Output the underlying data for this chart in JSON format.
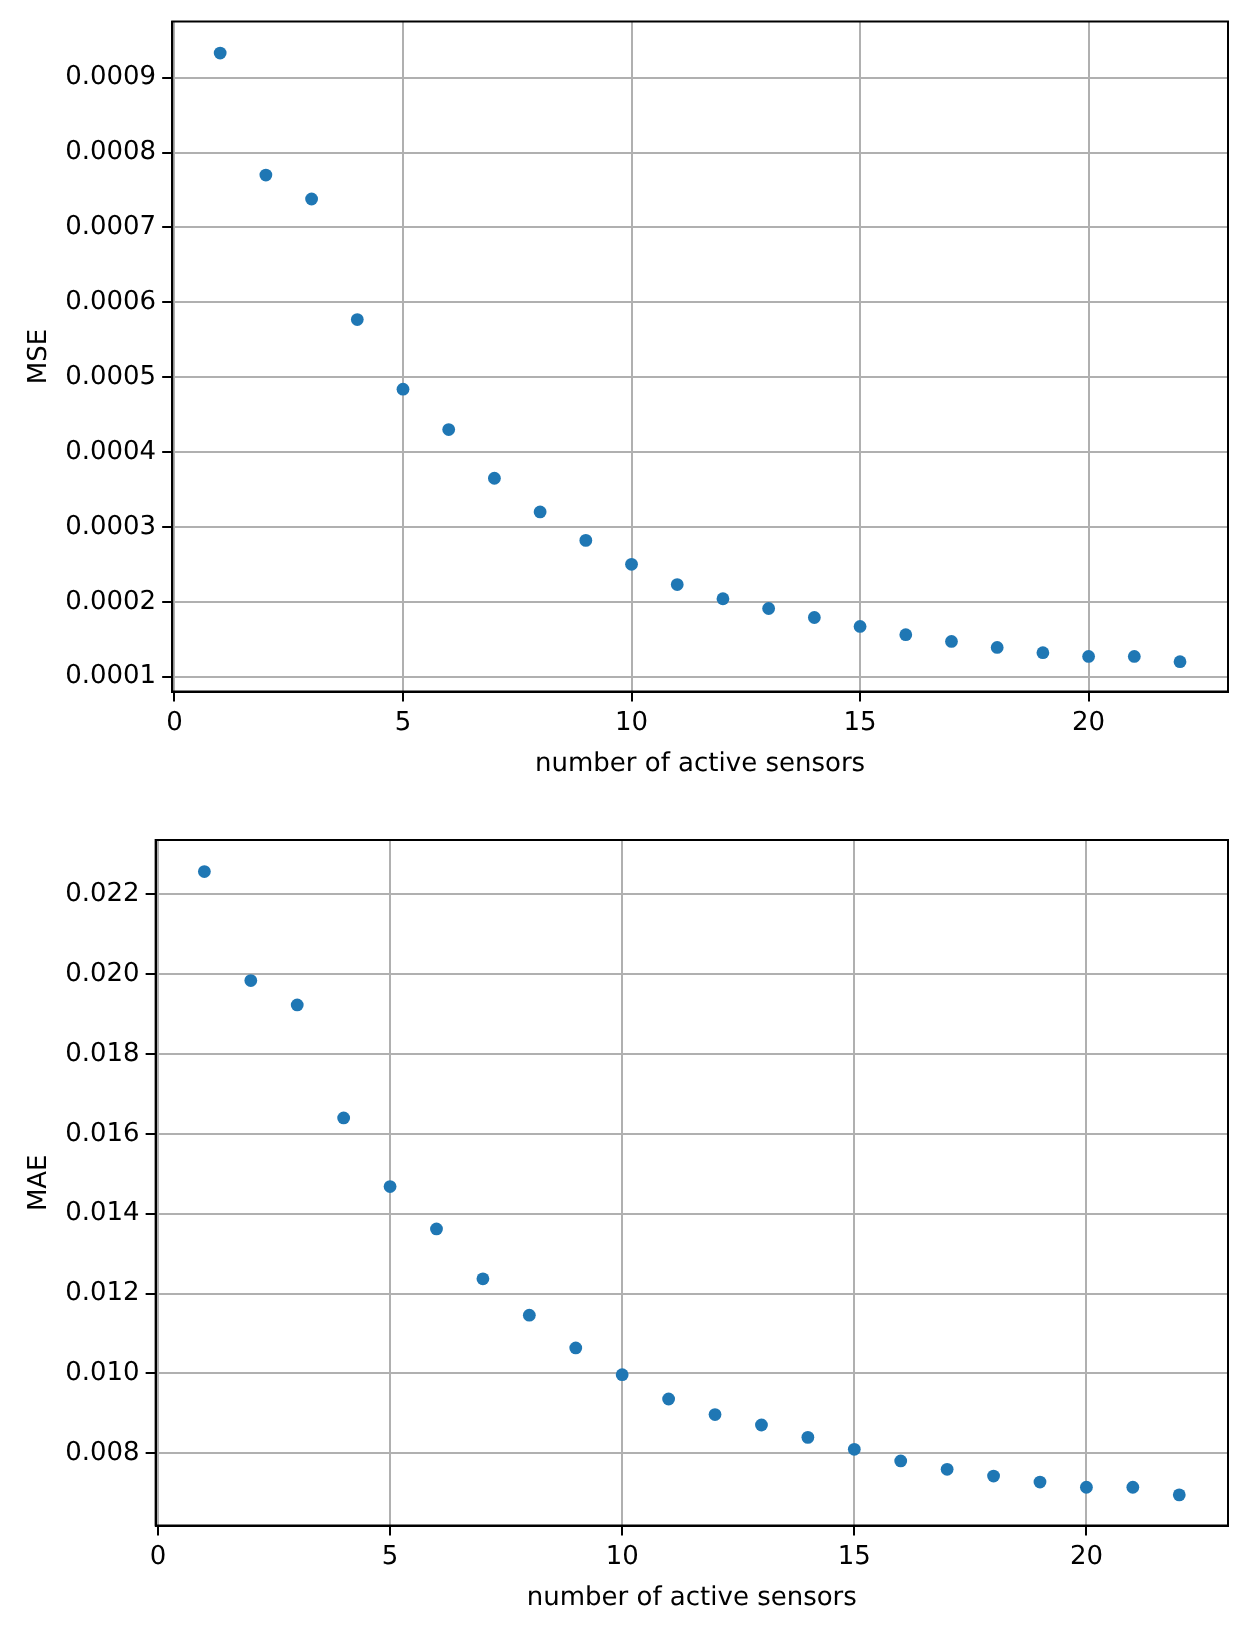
{
  "chart_data": [
    {
      "type": "scatter",
      "xlabel": "number of active sensors",
      "ylabel": "MSE",
      "x": [
        1,
        2,
        3,
        4,
        5,
        6,
        7,
        8,
        9,
        10,
        11,
        12,
        13,
        14,
        15,
        16,
        17,
        18,
        19,
        20,
        21,
        22
      ],
      "series": [
        {
          "color": "#1f77b4",
          "values": [
            0.000933,
            0.00077,
            0.000738,
            0.000577,
            0.000484,
            0.00043,
            0.000365,
            0.00032,
            0.000282,
            0.00025,
            0.000223,
            0.000204,
            0.000191,
            0.000179,
            0.000167,
            0.000156,
            0.000147,
            0.000139,
            0.000132,
            0.000127,
            0.000127,
            0.00012
          ]
        }
      ],
      "xlim": [
        -0.05,
        23.05
      ],
      "xticks": [
        0,
        5,
        10,
        15,
        20
      ],
      "ylim": [
        8e-05,
        0.000975
      ],
      "yticks": [
        0.0001,
        0.0002,
        0.0003,
        0.0004,
        0.0005,
        0.0006,
        0.0007,
        0.0008,
        0.0009
      ],
      "grid": true,
      "marker": "circle"
    },
    {
      "type": "scatter",
      "xlabel": "number of active sensors",
      "ylabel": "MAE",
      "x": [
        1,
        2,
        3,
        4,
        5,
        6,
        7,
        8,
        9,
        10,
        11,
        12,
        13,
        14,
        15,
        16,
        17,
        18,
        19,
        20,
        21,
        22
      ],
      "series": [
        {
          "color": "#1f77b4",
          "values": [
            0.02257,
            0.01984,
            0.01923,
            0.0164,
            0.01468,
            0.01362,
            0.01237,
            0.01146,
            0.01064,
            0.00997,
            0.00936,
            0.00897,
            0.00871,
            0.0084,
            0.0081,
            0.00781,
            0.0076,
            0.00743,
            0.00728,
            0.00715,
            0.00715,
            0.00696
          ]
        }
      ],
      "xlim": [
        -0.05,
        23.05
      ],
      "xticks": [
        0,
        5,
        10,
        15,
        20
      ],
      "ylim": [
        0.00619,
        0.02336
      ],
      "yticks": [
        {
          "value": 0.008,
          "label": "0.008"
        },
        {
          "value": 0.01,
          "label": "0.010"
        },
        {
          "value": 0.012,
          "label": "0.012"
        },
        {
          "value": 0.014,
          "label": "0.014"
        },
        {
          "value": 0.016,
          "label": "0.016"
        },
        {
          "value": 0.018,
          "label": "0.018"
        },
        {
          "value": 0.02,
          "label": "0.020"
        },
        {
          "value": 0.022,
          "label": "0.022"
        }
      ],
      "grid": true,
      "marker": "circle"
    }
  ]
}
